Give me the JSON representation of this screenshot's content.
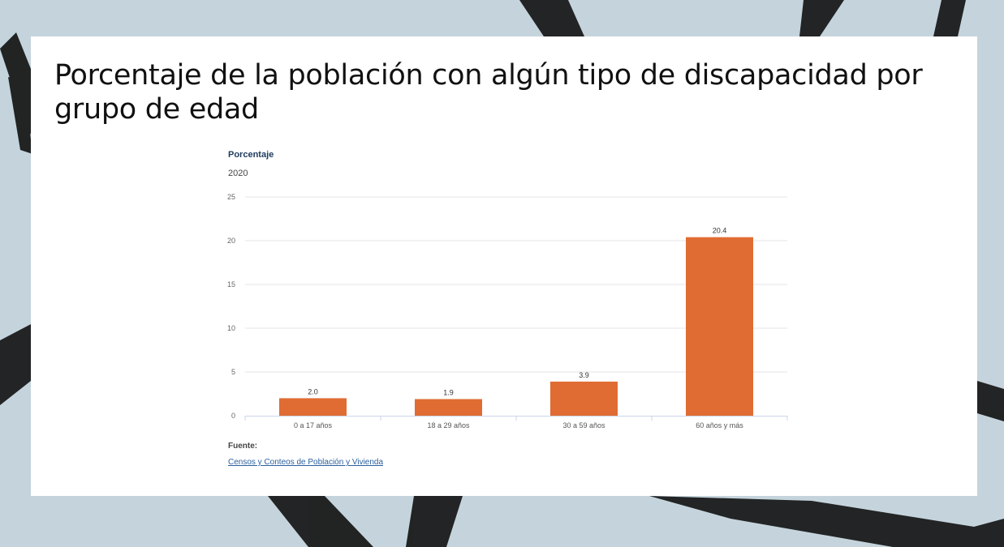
{
  "slide": {
    "title": "Porcentaje de la población con algún tipo de discapacidad por grupo de edad"
  },
  "chart_data": {
    "type": "bar",
    "ylabel": "Porcentaje",
    "subtitle": "2020",
    "categories": [
      "0 a 17 años",
      "18 a 29 años",
      "30 a 59 años",
      "60 años y más"
    ],
    "values": [
      2.0,
      1.9,
      3.9,
      20.4
    ],
    "data_labels": [
      "2.0",
      "1.9",
      "3.9",
      "20.4"
    ],
    "ylim": [
      0,
      25
    ],
    "yticks": [
      0,
      5,
      10,
      15,
      20,
      25
    ],
    "grid": true,
    "bar_color": "#e06c33"
  },
  "source": {
    "heading": "Fuente:",
    "link": "Censos y Conteos de Población y Vivienda"
  },
  "colors": {
    "background": "#c5d4dc",
    "panel": "#ffffff"
  }
}
